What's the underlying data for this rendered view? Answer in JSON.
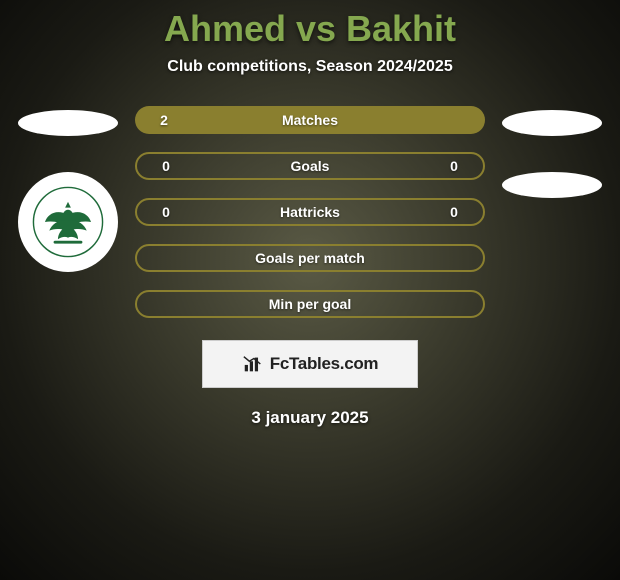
{
  "title": "Ahmed vs Bakhit",
  "subtitle": "Club competitions, Season 2024/2025",
  "colors": {
    "title_color": "#85a84f",
    "bar_solid": "#8a7f2f",
    "bar_outline": "#8a7f2f",
    "footer_bg": "#f3f3f3",
    "footer_border": "#cccccc",
    "text_white": "#ffffff"
  },
  "bars": [
    {
      "label": "Matches",
      "left": "2",
      "right": "",
      "type": "solid"
    },
    {
      "label": "Goals",
      "left": "0",
      "right": "0",
      "type": "outline"
    },
    {
      "label": "Hattricks",
      "left": "0",
      "right": "0",
      "type": "outline"
    },
    {
      "label": "Goals per match",
      "left": "",
      "right": "",
      "type": "outline"
    },
    {
      "label": "Min per goal",
      "left": "",
      "right": "",
      "type": "outline"
    }
  ],
  "left_side": {
    "has_top_ellipse": true,
    "badge_icon": "eagle-crest"
  },
  "right_side": {
    "has_top_ellipse": true,
    "has_second_ellipse": true
  },
  "footer": {
    "icon": "bar-chart-icon",
    "text": "FcTables.com"
  },
  "date": "3 january 2025"
}
